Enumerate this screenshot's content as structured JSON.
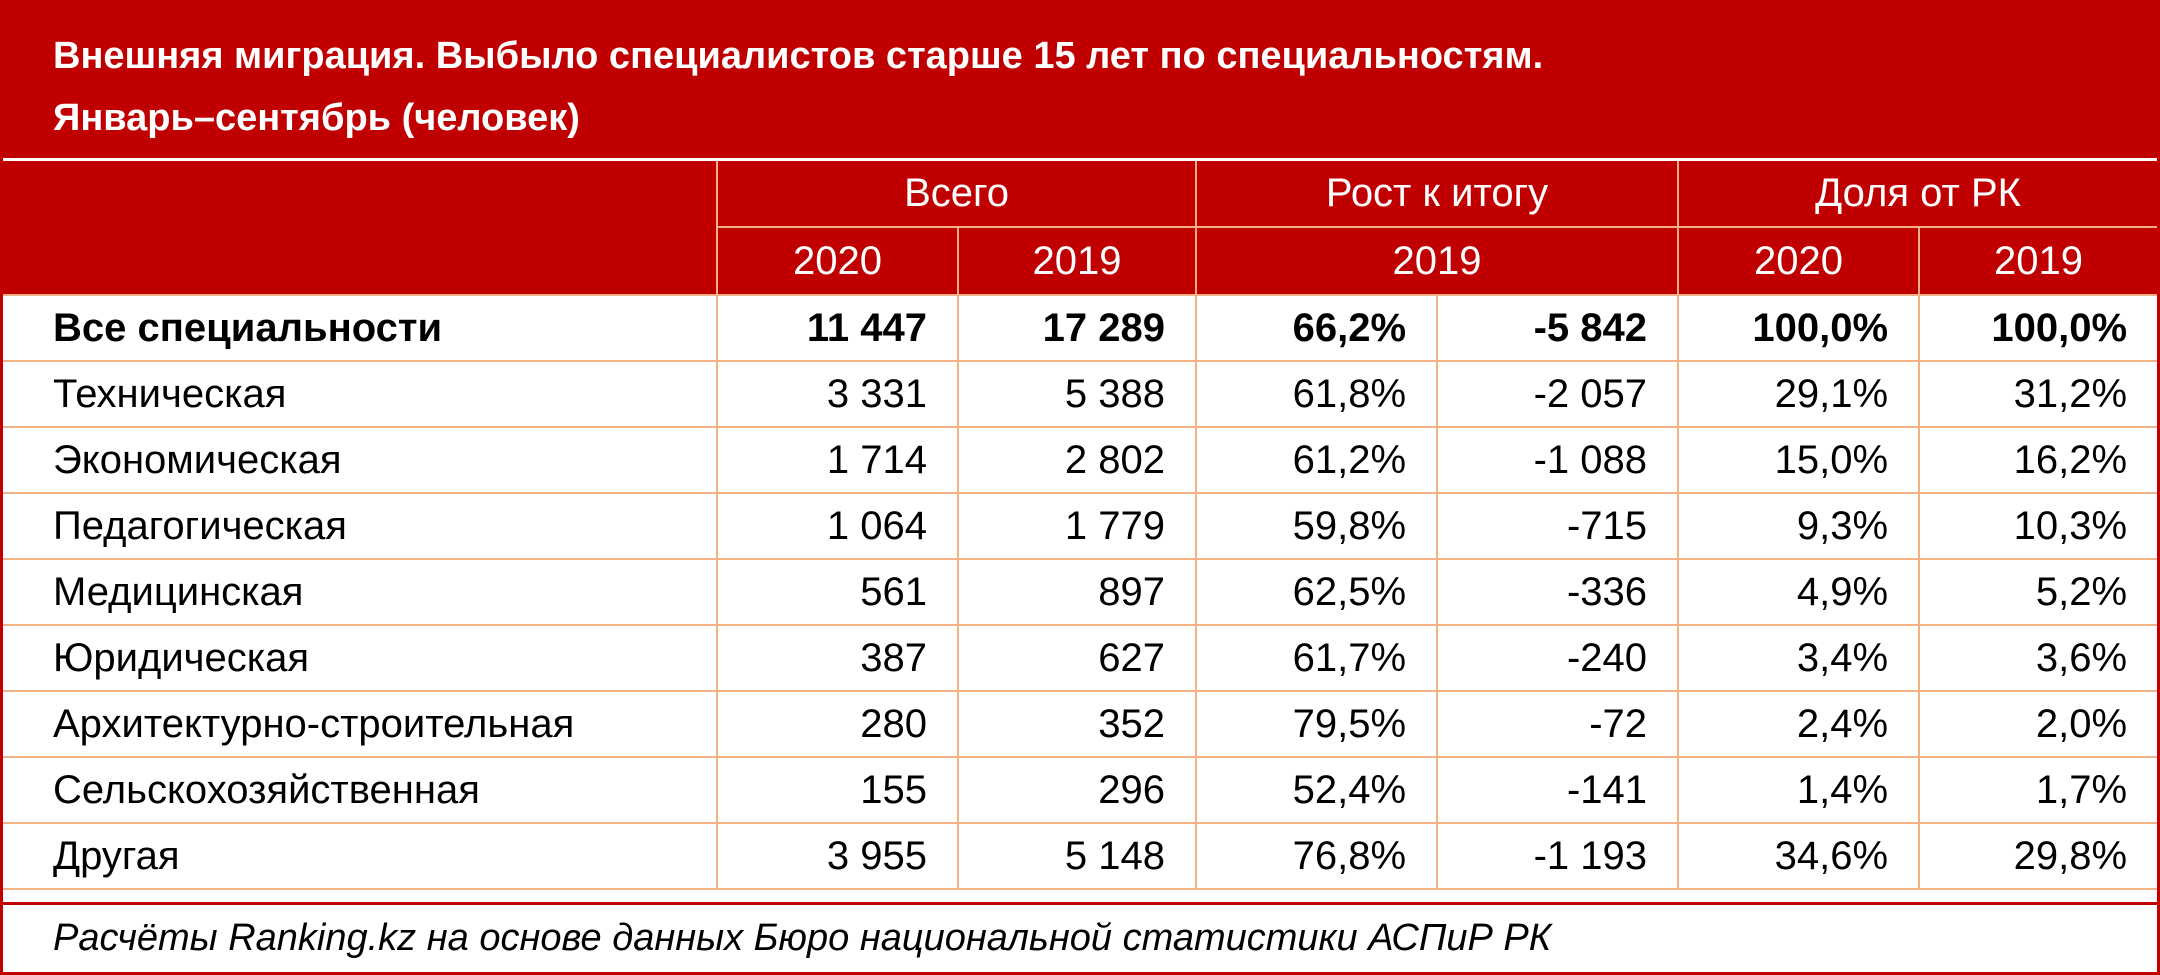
{
  "header": {
    "title": [
      "Внешняя миграция. Выбыло специалистов старше 15 лет по специальностям.",
      "Январь–сентябрь (человек)"
    ]
  },
  "table": {
    "groups": [
      "Всего",
      "Рост к итогу",
      "Доля от РК"
    ],
    "subheaders": [
      "2020",
      "2019",
      "2019",
      "2020",
      "2019"
    ],
    "rows": [
      [
        "Все специальности",
        "11 447",
        "17 289",
        "66,2%",
        "-5 842",
        "100,0%",
        "100,0%"
      ],
      [
        "Техническая",
        "3 331",
        "5 388",
        "61,8%",
        "-2 057",
        "29,1%",
        "31,2%"
      ],
      [
        "Экономическая",
        "1 714",
        "2 802",
        "61,2%",
        "-1 088",
        "15,0%",
        "16,2%"
      ],
      [
        "Педагогическая",
        "1 064",
        "1 779",
        "59,8%",
        "-715",
        "9,3%",
        "10,3%"
      ],
      [
        "Медицинская",
        "561",
        "897",
        "62,5%",
        "-336",
        "4,9%",
        "5,2%"
      ],
      [
        "Юридическая",
        "387",
        "627",
        "61,7%",
        "-240",
        "3,4%",
        "3,6%"
      ],
      [
        "Архитектурно-строительная",
        "280",
        "352",
        "79,5%",
        "-72",
        "2,4%",
        "2,0%"
      ],
      [
        "Сельскохозяйственная",
        "155",
        "296",
        "52,4%",
        "-141",
        "1,4%",
        "1,7%"
      ],
      [
        "Другая",
        "3 955",
        "5 148",
        "76,8%",
        "-1 193",
        "34,6%",
        "29,8%"
      ]
    ]
  },
  "footer": "Расчёты Ranking.kz на основе данных Бюро национальной статистики АСПиР РК"
}
